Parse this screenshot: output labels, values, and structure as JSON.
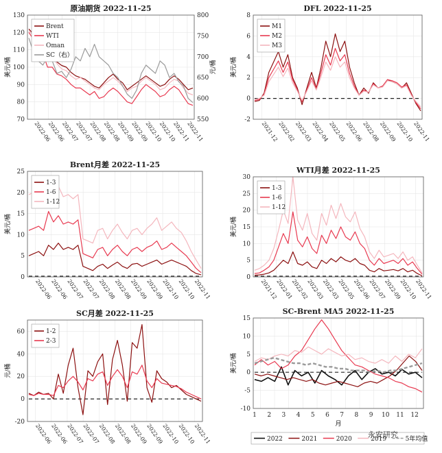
{
  "colors": {
    "dark": "#8b0f0f",
    "red": "#e8384f",
    "pink": "#f4b6bd",
    "grey": "#9a9a9a",
    "black": "#111111"
  },
  "watermark": "永安研究",
  "chart_data": [
    {
      "type": "line",
      "title": "原油期货 2022-11-25",
      "ylabel": "美元/桶",
      "ylabel_right": "元/桶",
      "ylim": [
        70,
        130
      ],
      "yticks": [
        70,
        80,
        90,
        100,
        110,
        120,
        130
      ],
      "ylim_right": [
        550,
        800
      ],
      "yticks_right": [
        550,
        600,
        650,
        700,
        750,
        800
      ],
      "xticks": [
        "2022-06",
        "2022-06",
        "2022-07",
        "2022-07",
        "2022-08",
        "2022-08",
        "2022-09",
        "2022-09",
        "2022-10",
        "2022-10",
        "2022-11",
        "2022-11"
      ],
      "legend": "top-left",
      "series": [
        {
          "name": "Brent",
          "color": "dark",
          "values": [
            122,
            119,
            115,
            112,
            105,
            108,
            103,
            101,
            100,
            97,
            95,
            94,
            93,
            91,
            89,
            88,
            91,
            94,
            96,
            93,
            91,
            87,
            89,
            91,
            93,
            95,
            93,
            91,
            89,
            90,
            93,
            95,
            93,
            90,
            87,
            88
          ]
        },
        {
          "name": "WTI",
          "color": "red",
          "values": [
            120,
            116,
            112,
            108,
            100,
            100,
            96,
            95,
            93,
            90,
            88,
            88,
            86,
            84,
            86,
            82,
            83,
            86,
            88,
            86,
            83,
            80,
            79,
            83,
            87,
            90,
            88,
            86,
            83,
            84,
            87,
            89,
            87,
            83,
            79,
            78
          ]
        },
        {
          "name": "Oman",
          "color": "pink",
          "values": [
            121,
            118,
            113,
            110,
            104,
            106,
            102,
            99,
            98,
            95,
            93,
            94,
            92,
            90,
            88,
            87,
            90,
            92,
            94,
            92,
            89,
            86,
            88,
            89,
            92,
            94,
            92,
            90,
            87,
            88,
            91,
            93,
            92,
            88,
            85,
            84
          ]
        },
        {
          "name": "SC（右）",
          "axis": "right",
          "color": "grey",
          "values": [
            745,
            710,
            690,
            680,
            700,
            690,
            660,
            665,
            650,
            670,
            700,
            690,
            720,
            700,
            730,
            700,
            690,
            680,
            660,
            650,
            630,
            610,
            600,
            620,
            660,
            680,
            670,
            660,
            690,
            680,
            650,
            660,
            640,
            630,
            600,
            590
          ]
        }
      ]
    },
    {
      "type": "line",
      "title": "DFL 2022-11-25",
      "ylabel": "美元/桶",
      "ylim": [
        -2,
        8
      ],
      "yticks": [
        -2,
        0,
        2,
        4,
        6,
        8
      ],
      "xticks": [
        "2021-12",
        "2022-02",
        "2022-03",
        "2022-04",
        "2022-05",
        "2022-06",
        "2022-08",
        "2022-09",
        "2022-10",
        "2022-11"
      ],
      "legend": "top-left",
      "series": [
        {
          "name": "M1",
          "color": "dark",
          "values": [
            -0.3,
            -0.2,
            0.5,
            2.5,
            3.5,
            4.5,
            3.0,
            4.2,
            2.0,
            1.0,
            -0.6,
            1.0,
            2.5,
            1.0,
            3.0,
            5.5,
            4.0,
            6.2,
            4.5,
            5.5,
            3.0,
            1.5,
            0.3,
            1.0,
            0.5,
            1.5,
            1.0,
            1.2,
            1.8,
            1.6,
            1.4,
            1.0,
            1.5,
            0.5,
            -0.5,
            -1.2
          ]
        },
        {
          "name": "M2",
          "color": "red",
          "values": [
            -0.2,
            -0.1,
            0.4,
            2.0,
            2.8,
            3.6,
            2.5,
            3.5,
            1.8,
            0.8,
            -0.3,
            0.8,
            2.0,
            0.9,
            2.5,
            4.2,
            3.2,
            4.8,
            3.6,
            4.2,
            2.4,
            1.2,
            0.3,
            0.8,
            0.6,
            1.4,
            1.0,
            1.2,
            1.8,
            1.7,
            1.5,
            1.1,
            1.3,
            0.4,
            -0.4,
            -1.0
          ]
        },
        {
          "name": "M3",
          "color": "pink",
          "values": [
            -0.1,
            0.0,
            0.3,
            1.6,
            2.3,
            3.0,
            2.1,
            2.9,
            1.5,
            0.7,
            -0.2,
            0.7,
            1.7,
            0.8,
            2.1,
            3.5,
            2.7,
            4.0,
            3.0,
            3.5,
            2.0,
            1.0,
            0.3,
            0.7,
            0.6,
            1.3,
            1.0,
            1.1,
            1.7,
            1.6,
            1.4,
            1.0,
            1.2,
            0.3,
            -0.3,
            -0.8
          ]
        }
      ]
    },
    {
      "type": "line",
      "title": "Brent月差 2022-11-25",
      "ylabel": "美元/桶",
      "ylim": [
        0,
        25
      ],
      "yticks": [
        0,
        5,
        10,
        15,
        20,
        25
      ],
      "xticks": [
        "2022-06",
        "2022-06",
        "2022-07",
        "2022-07",
        "2022-08",
        "2022-08",
        "2022-09",
        "2022-09",
        "2022-10",
        "2022-10",
        "2022-11"
      ],
      "legend": "top-left",
      "series": [
        {
          "name": "1-3",
          "color": "dark",
          "values": [
            5.0,
            5.5,
            6.0,
            5.0,
            7.5,
            6.5,
            8.0,
            6.5,
            7.0,
            6.5,
            7.5,
            2.5,
            2.0,
            1.5,
            2.5,
            3.0,
            2.0,
            2.8,
            3.5,
            2.5,
            2.0,
            3.0,
            3.2,
            2.5,
            3.0,
            3.5,
            4.0,
            3.0,
            3.5,
            4.0,
            3.5,
            3.0,
            2.5,
            1.5,
            0.8,
            0.5
          ]
        },
        {
          "name": "1-6",
          "color": "red",
          "values": [
            11.0,
            11.5,
            12.0,
            11.0,
            15.5,
            13.0,
            14.5,
            12.5,
            13.0,
            12.5,
            13.5,
            5.5,
            5.0,
            4.5,
            6.5,
            7.0,
            5.0,
            6.5,
            7.5,
            6.0,
            5.0,
            6.5,
            7.0,
            6.0,
            7.0,
            7.5,
            8.5,
            6.5,
            7.0,
            8.0,
            7.0,
            6.0,
            5.0,
            3.5,
            2.0,
            1.0
          ]
        },
        {
          "name": "1-12",
          "color": "pink",
          "values": [
            19.5,
            20.0,
            20.5,
            19.0,
            22.0,
            20.5,
            21.5,
            19.0,
            19.5,
            18.5,
            19.5,
            9.0,
            8.5,
            8.0,
            11.0,
            11.5,
            9.0,
            11.0,
            12.5,
            10.5,
            9.0,
            11.0,
            11.5,
            10.0,
            11.5,
            12.5,
            14.0,
            11.0,
            12.0,
            13.0,
            11.5,
            10.5,
            8.5,
            6.0,
            4.0,
            2.0
          ]
        }
      ]
    },
    {
      "type": "line",
      "title": "WTI月差 2022-11-25",
      "ylabel": "美元/桶",
      "ylim": [
        0,
        30
      ],
      "yticks": [
        0,
        5,
        10,
        15,
        20,
        25,
        30
      ],
      "xticks": [
        "2021-12",
        "2022-01",
        "2022-02",
        "2022-03",
        "2022-03",
        "2022-05",
        "2022-06",
        "2022-07",
        "2022-09",
        "2022-10",
        "2022-11"
      ],
      "legend": "top-left",
      "series": [
        {
          "name": "1-3",
          "color": "dark",
          "values": [
            0.5,
            0.6,
            0.8,
            1.2,
            2.0,
            3.5,
            5.0,
            4.0,
            7.5,
            4.0,
            3.5,
            4.5,
            3.0,
            2.5,
            5.0,
            4.0,
            5.5,
            4.5,
            6.0,
            5.0,
            4.5,
            5.5,
            4.0,
            3.5,
            2.0,
            1.5,
            2.5,
            1.8,
            2.0,
            2.2,
            1.8,
            2.5,
            1.5,
            2.0,
            1.0,
            0.3
          ]
        },
        {
          "name": "1-6",
          "color": "red",
          "values": [
            1.0,
            1.2,
            2.0,
            3.0,
            5.0,
            9.0,
            13.0,
            10.0,
            19.5,
            11.0,
            9.0,
            12.0,
            8.5,
            7.0,
            12.5,
            10.0,
            14.0,
            11.5,
            15.0,
            12.0,
            11.0,
            13.5,
            10.0,
            8.5,
            5.0,
            3.5,
            5.5,
            4.0,
            4.5,
            5.0,
            4.0,
            5.5,
            3.5,
            4.5,
            2.5,
            0.8
          ]
        },
        {
          "name": "1-12",
          "color": "pink",
          "values": [
            2.0,
            2.5,
            3.5,
            5.0,
            8.5,
            14.0,
            20.0,
            16.0,
            31.0,
            17.0,
            14.0,
            19.0,
            13.0,
            11.0,
            19.0,
            15.5,
            21.5,
            17.5,
            22.0,
            18.0,
            16.5,
            19.5,
            14.5,
            12.0,
            7.5,
            5.5,
            8.0,
            6.0,
            6.5,
            7.0,
            5.5,
            7.5,
            5.0,
            6.0,
            3.5,
            1.2
          ]
        }
      ]
    },
    {
      "type": "line",
      "title": "SC月差 2022-11-25",
      "ylabel": "元/桶",
      "ylim": [
        -20,
        70
      ],
      "yticks": [
        -20,
        0,
        20,
        40,
        60
      ],
      "xticks": [
        "2022-06",
        "2022-06",
        "2022-07",
        "2022-07",
        "2022-08",
        "2022-08",
        "2022-09",
        "2022-09",
        "2022-10",
        "2022-10",
        "2022-11"
      ],
      "legend": "top-left",
      "series": [
        {
          "name": "1-2",
          "color": "dark",
          "values": [
            5,
            3,
            6,
            4,
            5,
            0,
            22,
            5,
            30,
            45,
            10,
            -14,
            25,
            20,
            33,
            40,
            -5,
            35,
            52,
            30,
            -2,
            50,
            45,
            66,
            10,
            -3,
            25,
            18,
            15,
            10,
            12,
            8,
            4,
            2,
            0,
            -2
          ]
        },
        {
          "name": "2-3",
          "color": "red",
          "values": [
            4,
            3,
            5,
            4,
            4,
            3,
            12,
            10,
            16,
            20,
            15,
            8,
            18,
            16,
            22,
            24,
            12,
            20,
            26,
            20,
            10,
            24,
            22,
            30,
            16,
            10,
            18,
            14,
            13,
            12,
            11,
            9,
            6,
            4,
            2,
            0
          ]
        }
      ]
    },
    {
      "type": "line",
      "title": "SC-Brent MA5 2022-11-25",
      "ylabel": "美元/桶",
      "xlabel": "月",
      "ylim": [
        -10,
        15
      ],
      "yticks": [
        -10,
        -5,
        0,
        5,
        10,
        15
      ],
      "xticks": [
        "1",
        "2",
        "3",
        "4",
        "5",
        "6",
        "7",
        "8",
        "9",
        "10",
        "11",
        "12"
      ],
      "legend": "bottom",
      "series": [
        {
          "name": "2022",
          "color": "black",
          "values": [
            -2.0,
            -2.5,
            -1.5,
            -2.5,
            1.5,
            -3.5,
            0.5,
            -1.0,
            0.0,
            -3.0,
            0.5,
            -1.0,
            -2.0,
            -3.5,
            -1.0,
            0.5,
            -2.0,
            0.0,
            1.0,
            -0.5,
            0.0,
            -1.0,
            0.8,
            -0.5,
            0.0,
            -1.5
          ]
        },
        {
          "name": "2021",
          "color": "dark",
          "values": [
            -0.5,
            -1.0,
            -0.5,
            -1.0,
            -1.5,
            -2.0,
            -1.5,
            -2.0,
            -2.5,
            -2.0,
            -3.0,
            -3.5,
            -3.0,
            -2.5,
            -3.0,
            -3.5,
            -4.0,
            -3.0,
            -2.5,
            -3.0,
            -2.0,
            -1.0,
            0.5,
            2.5,
            4.5,
            3.0,
            0.5
          ]
        },
        {
          "name": "2020",
          "color": "red",
          "values": [
            2.0,
            3.5,
            2.0,
            3.0,
            1.0,
            2.0,
            4.5,
            6.0,
            9.0,
            12.0,
            14.5,
            12.0,
            9.0,
            6.0,
            4.0,
            2.0,
            1.5,
            0.5,
            -0.5,
            -1.0,
            -1.5,
            -2.5,
            -3.0,
            -4.0,
            -4.5,
            -5.5
          ]
        },
        {
          "name": "2019",
          "color": "pink",
          "values": [
            3.0,
            4.0,
            3.5,
            4.5,
            5.0,
            4.5,
            6.0,
            5.5,
            7.0,
            6.0,
            5.0,
            6.5,
            5.5,
            4.5,
            5.0,
            3.5,
            4.0,
            3.0,
            2.5,
            3.5,
            2.5,
            4.5,
            3.0,
            5.0,
            4.0,
            6.5
          ]
        },
        {
          "name": "5年均值",
          "color": "grey",
          "dashed": true,
          "values": [
            2.5,
            3.0,
            3.5,
            4.0,
            3.5,
            3.0,
            2.5,
            2.5,
            2.0,
            2.5,
            2.0,
            1.5,
            1.5,
            1.0,
            1.0,
            0.5,
            0.5,
            0.5,
            0.0,
            0.5,
            0.0,
            0.5,
            0.5,
            1.0,
            1.5,
            2.0,
            2.5
          ]
        }
      ]
    }
  ]
}
